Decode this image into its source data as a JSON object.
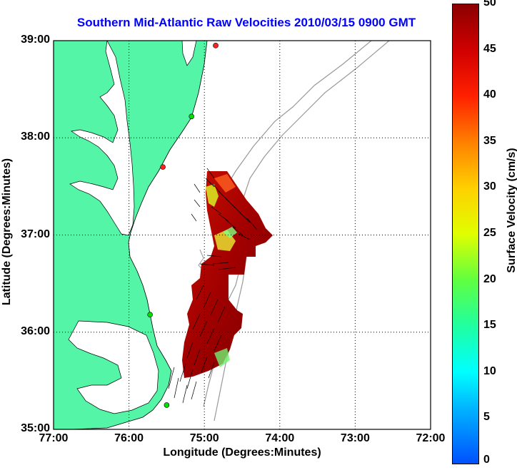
{
  "title": "Southern Mid-Atlantic Raw Velocities 2010/03/15 0900 GMT",
  "xlabel": "Longitude (Degrees:Minutes)",
  "ylabel": "Latitude (Degrees:Minutes)",
  "colorbar_label": "Surface Velocity (cm/s)",
  "x_ticks": [
    "77:00",
    "76:00",
    "75:00",
    "74:00",
    "73:00",
    "72:00"
  ],
  "y_ticks": [
    "39:00",
    "38:00",
    "37:00",
    "36:00",
    "35:00"
  ],
  "colorbar_ticks": [
    "50",
    "45",
    "40",
    "35",
    "30",
    "25",
    "20",
    "15",
    "10",
    "5",
    "0"
  ],
  "colors": {
    "land": "#55f5a8",
    "title": "#0000ff",
    "station_active": "#00e000",
    "station_inactive": "#ff2020"
  },
  "chart_data": {
    "type": "map",
    "xlim": [
      -77,
      -72
    ],
    "ylim": [
      35,
      39
    ],
    "grid": true,
    "colorbar_range": [
      0,
      50
    ],
    "stations": [
      {
        "lon": -74.85,
        "lat": 38.95,
        "status": "inactive"
      },
      {
        "lon": -75.17,
        "lat": 38.22,
        "status": "active"
      },
      {
        "lon": -75.55,
        "lat": 37.7,
        "status": "inactive"
      },
      {
        "lon": -75.72,
        "lat": 36.18,
        "status": "active"
      },
      {
        "lon": -75.5,
        "lat": 35.25,
        "status": "active"
      }
    ]
  }
}
